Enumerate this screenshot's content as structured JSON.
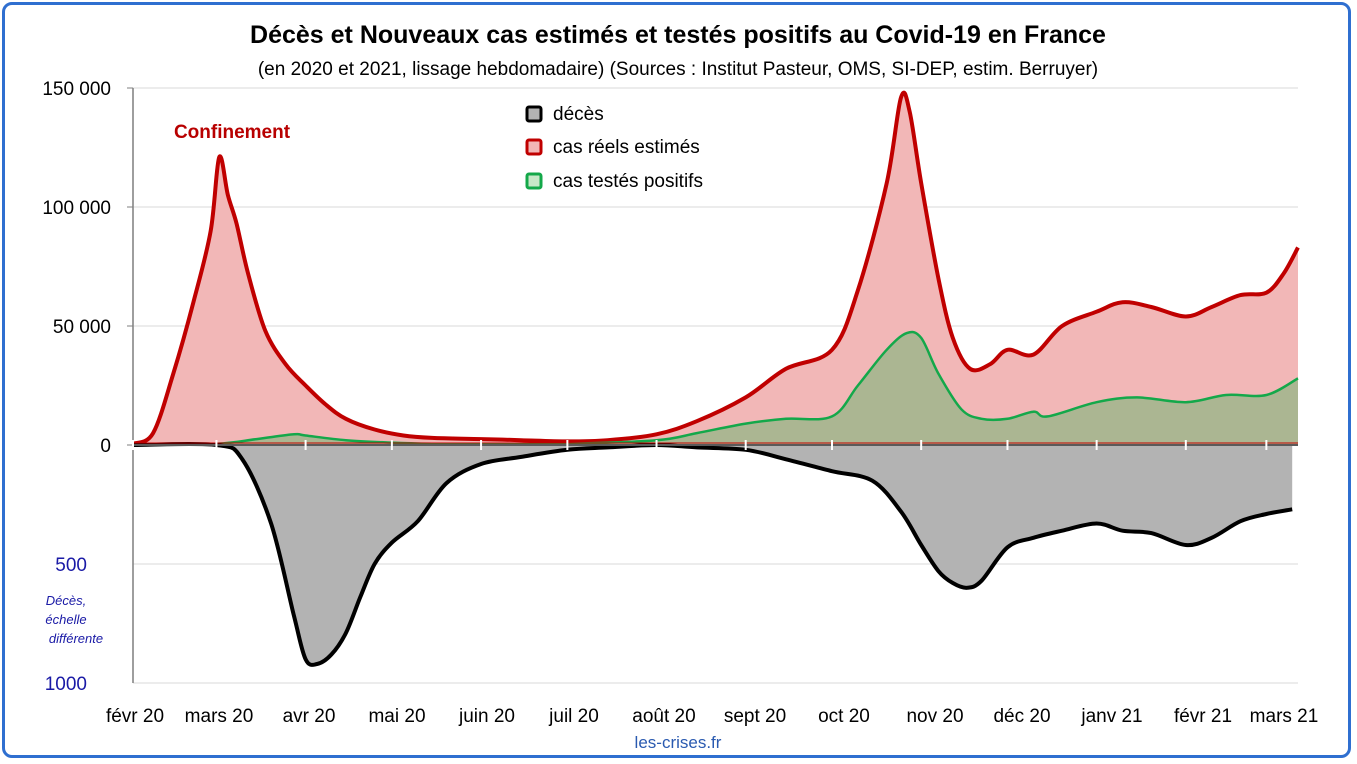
{
  "chart_data": {
    "type": "area",
    "title": "Décès et Nouveaux cas estimés et testés positifs au Covid-19 en France",
    "subtitle": "(en 2020 et 2021, lissage hebdomadaire) (Sources : Institut Pasteur, OMS, SI-DEP, estim. Berruyer)",
    "source": "les-crises.fr",
    "annotation": "Confinement",
    "ylim": [
      0,
      150000
    ],
    "ylim_deaths": [
      0,
      1000
    ],
    "grid": true,
    "legend_position": "top-center",
    "y_ticks": [
      "150 000",
      "100 000",
      "50 000",
      "0"
    ],
    "y_ticks_deaths": [
      "500",
      "1000"
    ],
    "y_note_deaths": [
      "Décès,",
      "échelle",
      "différente"
    ],
    "x_tick_labels": [
      "févr 20",
      "mars 20",
      "avr 20",
      "mai 20",
      "juin 20",
      "juil 20",
      "août 20",
      "sept 20",
      "oct 20",
      "nov 20",
      "déc 20",
      "janv 21",
      "févr 21",
      "mars 21"
    ],
    "series": [
      {
        "name": "décès",
        "color": "#000000",
        "fill": "#b3b3b3",
        "x": [
          "2020-02-01",
          "2020-03-01",
          "2020-03-10",
          "2020-03-20",
          "2020-03-28",
          "2020-04-01",
          "2020-04-05",
          "2020-04-10",
          "2020-04-15",
          "2020-04-20",
          "2020-04-25",
          "2020-05-01",
          "2020-05-10",
          "2020-05-20",
          "2020-06-01",
          "2020-06-15",
          "2020-07-01",
          "2020-07-15",
          "2020-08-01",
          "2020-08-15",
          "2020-09-01",
          "2020-09-15",
          "2020-10-01",
          "2020-10-15",
          "2020-10-25",
          "2020-11-01",
          "2020-11-07",
          "2020-11-12",
          "2020-11-17",
          "2020-11-22",
          "2020-12-01",
          "2020-12-10",
          "2020-12-20",
          "2021-01-01",
          "2021-01-10",
          "2021-01-20",
          "2021-02-01",
          "2021-02-10",
          "2021-02-20",
          "2021-03-01",
          "2021-03-10"
        ],
        "values": [
          0,
          0,
          60,
          330,
          720,
          900,
          920,
          880,
          790,
          640,
          500,
          410,
          320,
          160,
          80,
          50,
          20,
          10,
          0,
          10,
          20,
          60,
          110,
          150,
          280,
          420,
          530,
          580,
          600,
          570,
          430,
          390,
          360,
          330,
          360,
          370,
          420,
          390,
          320,
          290,
          270
        ]
      },
      {
        "name": "cas réels estimés",
        "color": "#c00000",
        "fill": "#f2b7b7",
        "x": [
          "2020-02-01",
          "2020-02-08",
          "2020-02-15",
          "2020-02-22",
          "2020-02-28",
          "2020-03-02",
          "2020-03-05",
          "2020-03-08",
          "2020-03-12",
          "2020-03-18",
          "2020-03-25",
          "2020-04-01",
          "2020-04-08",
          "2020-04-15",
          "2020-04-25",
          "2020-05-05",
          "2020-05-15",
          "2020-06-01",
          "2020-06-15",
          "2020-07-01",
          "2020-07-15",
          "2020-08-01",
          "2020-08-15",
          "2020-09-01",
          "2020-09-15",
          "2020-10-01",
          "2020-10-10",
          "2020-10-20",
          "2020-10-25",
          "2020-10-28",
          "2020-11-01",
          "2020-11-07",
          "2020-11-12",
          "2020-11-18",
          "2020-11-25",
          "2020-12-01",
          "2020-12-10",
          "2020-12-20",
          "2021-01-01",
          "2021-01-10",
          "2021-01-20",
          "2021-02-01",
          "2021-02-10",
          "2021-02-20",
          "2021-03-01",
          "2021-03-07",
          "2021-03-12"
        ],
        "values": [
          500,
          5000,
          30000,
          60000,
          90000,
          121000,
          105000,
          93000,
          72000,
          48000,
          34000,
          25000,
          17000,
          11000,
          6500,
          4000,
          3000,
          2500,
          2000,
          1500,
          2000,
          4500,
          10000,
          20000,
          32000,
          40000,
          65000,
          110000,
          146000,
          140000,
          110000,
          70000,
          45000,
          32000,
          34000,
          40000,
          38000,
          50000,
          56000,
          60000,
          58000,
          54000,
          58000,
          63000,
          64000,
          72000,
          83000
        ]
      },
      {
        "name": "cas testés positifs",
        "color": "#14a84a",
        "fill": "#a6b58f",
        "x": [
          "2020-02-01",
          "2020-03-01",
          "2020-03-15",
          "2020-03-28",
          "2020-04-01",
          "2020-04-15",
          "2020-05-01",
          "2020-05-15",
          "2020-06-01",
          "2020-07-01",
          "2020-08-01",
          "2020-08-15",
          "2020-09-01",
          "2020-09-15",
          "2020-10-01",
          "2020-10-10",
          "2020-10-20",
          "2020-10-27",
          "2020-11-01",
          "2020-11-07",
          "2020-11-15",
          "2020-11-22",
          "2020-12-01",
          "2020-12-10",
          "2020-12-15",
          "2021-01-01",
          "2021-01-15",
          "2021-02-01",
          "2021-02-15",
          "2021-03-01",
          "2021-03-12"
        ],
        "values": [
          0,
          500,
          2500,
          4500,
          4000,
          2000,
          1000,
          500,
          300,
          500,
          2000,
          5000,
          9000,
          11000,
          12000,
          25000,
          40000,
          47000,
          45000,
          30000,
          15000,
          11000,
          11000,
          14000,
          12000,
          18000,
          20000,
          18000,
          21000,
          21000,
          28000
        ]
      }
    ]
  }
}
